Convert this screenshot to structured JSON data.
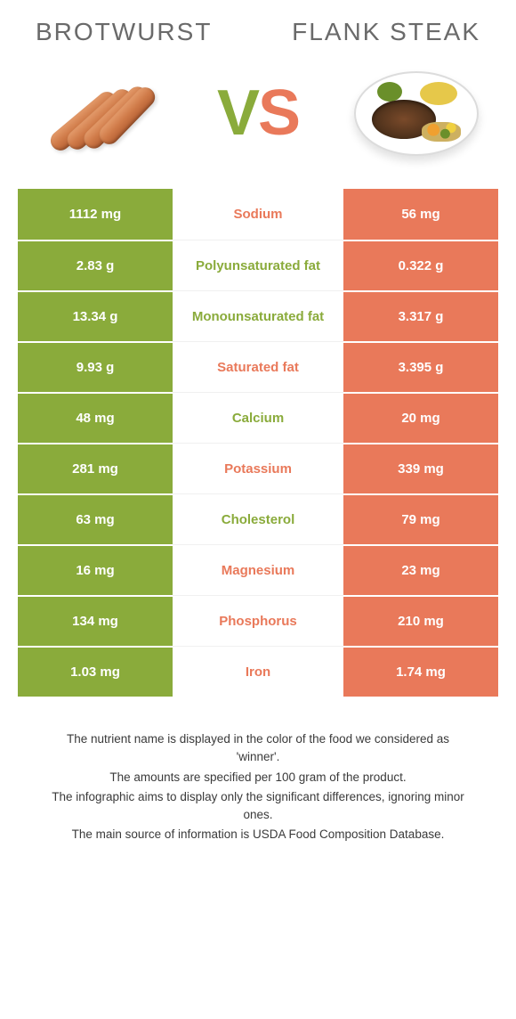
{
  "colors": {
    "left_bg": "#8aab3b",
    "right_bg": "#e9795a",
    "left_label": "#8aab3b",
    "right_label": "#e9795a",
    "title_text": "#6a6a6a",
    "cell_text": "#ffffff",
    "footer_text": "#3a3a3a",
    "row_divider": "#ffffff"
  },
  "header": {
    "left_title": "Brotwurst",
    "right_title": "Flank steak",
    "vs": {
      "v": "V",
      "s": "S"
    }
  },
  "table": {
    "columns": [
      "left_value",
      "nutrient",
      "right_value",
      "winner"
    ],
    "rows": [
      {
        "left_value": "1112 mg",
        "nutrient": "Sodium",
        "right_value": "56 mg",
        "winner": "right"
      },
      {
        "left_value": "2.83 g",
        "nutrient": "Polyunsaturated fat",
        "right_value": "0.322 g",
        "winner": "left"
      },
      {
        "left_value": "13.34 g",
        "nutrient": "Monounsaturated fat",
        "right_value": "3.317 g",
        "winner": "left"
      },
      {
        "left_value": "9.93 g",
        "nutrient": "Saturated fat",
        "right_value": "3.395 g",
        "winner": "right"
      },
      {
        "left_value": "48 mg",
        "nutrient": "Calcium",
        "right_value": "20 mg",
        "winner": "left"
      },
      {
        "left_value": "281 mg",
        "nutrient": "Potassium",
        "right_value": "339 mg",
        "winner": "right"
      },
      {
        "left_value": "63 mg",
        "nutrient": "Cholesterol",
        "right_value": "79 mg",
        "winner": "left"
      },
      {
        "left_value": "16 mg",
        "nutrient": "Magnesium",
        "right_value": "23 mg",
        "winner": "right"
      },
      {
        "left_value": "134 mg",
        "nutrient": "Phosphorus",
        "right_value": "210 mg",
        "winner": "right"
      },
      {
        "left_value": "1.03 mg",
        "nutrient": "Iron",
        "right_value": "1.74 mg",
        "winner": "right"
      }
    ]
  },
  "footer": {
    "lines": [
      "The nutrient name is displayed in the color of the food we considered as 'winner'.",
      "The amounts are specified per 100 gram of the product.",
      "The infographic aims to display only the significant differences, ignoring minor ones.",
      "The main source of information is USDA Food Composition Database."
    ]
  }
}
